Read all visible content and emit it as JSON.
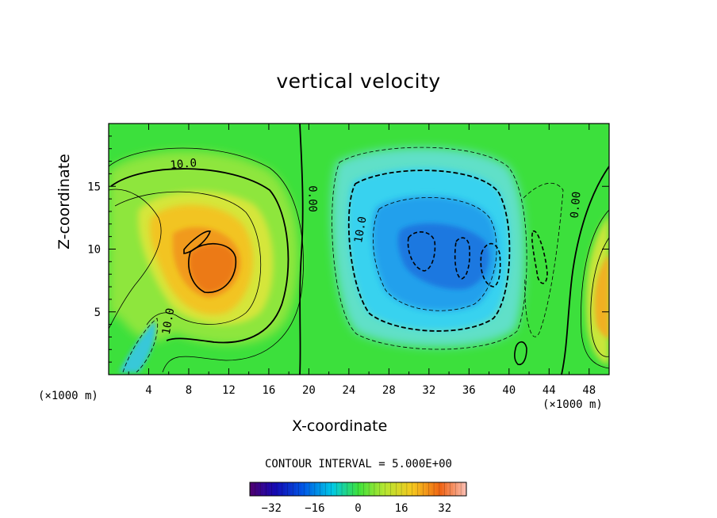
{
  "chart_data": {
    "type": "heatmap",
    "title": "vertical velocity",
    "xlabel": "X-coordinate",
    "ylabel": "Z-coordinate",
    "x_unit_left": "(×1000 m)",
    "x_unit_right": "(×1000 m)",
    "xlim": [
      0,
      50
    ],
    "ylim": [
      0,
      20
    ],
    "x_ticks": [
      4,
      8,
      12,
      16,
      20,
      24,
      28,
      32,
      36,
      40,
      44,
      48
    ],
    "y_ticks": [
      5,
      10,
      15
    ],
    "contour_interval_text": "CONTOUR INTERVAL = 5.000E+00",
    "contour_labels": [
      {
        "text": "10.0",
        "x": 7.5,
        "y": 16.5,
        "rot": -5
      },
      {
        "text": "0.00",
        "x": 20.0,
        "y": 14.0,
        "rot": 90
      },
      {
        "text": "10.0",
        "x": 25.5,
        "y": 11.5,
        "rot": -80
      },
      {
        "text": "10.0",
        "x": 6.3,
        "y": 4.2,
        "rot": -80
      },
      {
        "text": "0.00",
        "x": 47.0,
        "y": 13.5,
        "rot": -85
      }
    ],
    "features": [
      {
        "kind": "updraft",
        "label": "positive maximum",
        "x": 11,
        "z": 8.5,
        "value": 30
      },
      {
        "kind": "downdraft",
        "label": "negative minimum",
        "x": 32,
        "z": 9.5,
        "value": -25
      },
      {
        "kind": "updraft",
        "label": "right edge updraft",
        "x": 49.5,
        "z": 6,
        "value": 20
      }
    ],
    "colorbar": {
      "min": -40,
      "max": 40,
      "ticks": [
        -32,
        -16,
        0,
        16,
        32
      ],
      "tick_labels": [
        "−32",
        "−16",
        "0",
        "16",
        "32"
      ]
    }
  }
}
